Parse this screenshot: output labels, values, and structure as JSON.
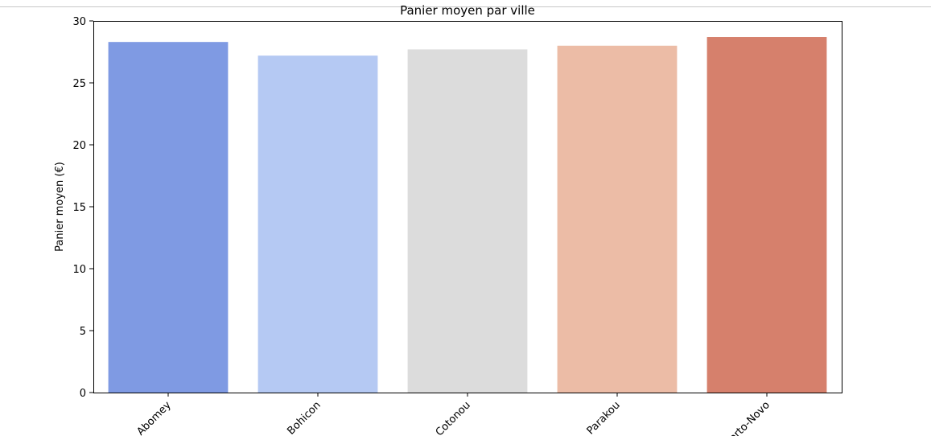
{
  "chart_data": {
    "type": "bar",
    "title": "Panier moyen par ville",
    "xlabel": "",
    "ylabel": "Panier moyen (€)",
    "categories": [
      "Abomey",
      "Bohicon",
      "Cotonou",
      "Parakou",
      "Porto-Novo"
    ],
    "values": [
      28.3,
      27.2,
      27.7,
      28.0,
      28.7
    ],
    "colors": [
      "#7f9ae3",
      "#b5c9f3",
      "#dcdcdc",
      "#ecbca6",
      "#d6806c"
    ],
    "ylim": [
      0,
      30
    ],
    "yticks": [
      0,
      5,
      10,
      15,
      20,
      25,
      30
    ],
    "grid": false,
    "xtick_rotation": 45
  }
}
